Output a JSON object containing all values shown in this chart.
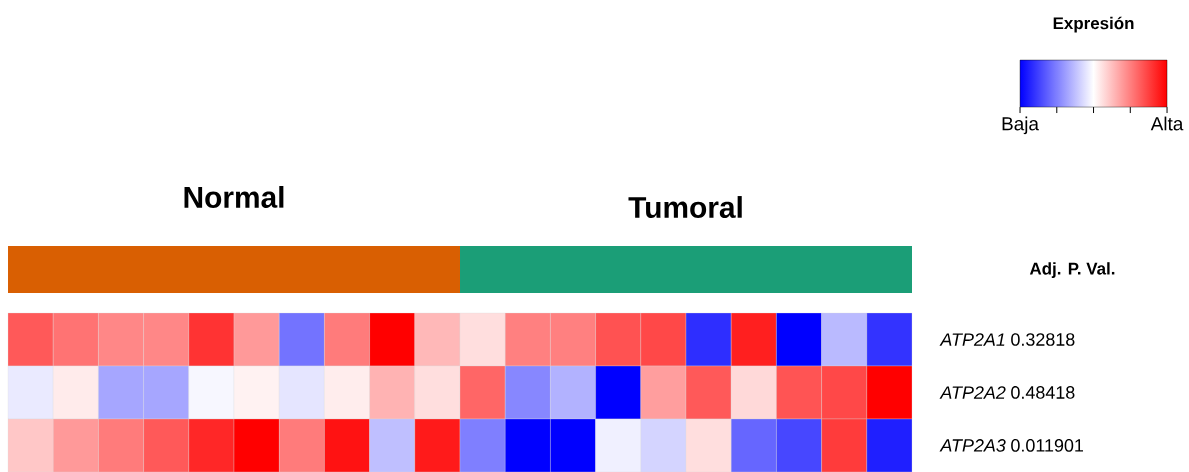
{
  "chart_data": {
    "type": "heatmap",
    "categories": [
      null,
      null,
      null,
      null,
      null,
      null,
      null,
      null,
      null,
      null,
      null,
      null,
      null,
      null,
      null,
      null,
      null,
      null,
      null,
      null
    ],
    "y_categories": [
      "ATP2A1",
      "ATP2A2",
      "ATP2A3"
    ],
    "y2_categories": [
      "0.32818",
      "0.48418",
      "0.011901"
    ],
    "cells": [
      [
        0.65,
        0.55,
        0.47,
        0.47,
        0.8,
        0.4,
        -0.55,
        0.52,
        1.0,
        0.28,
        0.13,
        0.5,
        0.5,
        0.68,
        0.72,
        -0.82,
        0.88,
        -1.0,
        -0.27,
        -0.8
      ],
      [
        -0.08,
        0.08,
        -0.35,
        -0.35,
        -0.03,
        0.05,
        -0.1,
        0.07,
        0.3,
        0.13,
        0.6,
        -0.47,
        -0.3,
        -1.0,
        0.38,
        0.65,
        0.15,
        0.67,
        0.72,
        1.0
      ],
      [
        0.22,
        0.4,
        0.52,
        0.65,
        0.85,
        1.0,
        0.52,
        0.93,
        -0.25,
        0.9,
        -0.5,
        -1.0,
        -1.0,
        -0.06,
        -0.17,
        0.13,
        -0.6,
        -0.72,
        0.77,
        -0.88
      ]
    ],
    "clim": [
      -1,
      1
    ],
    "cticks": [
      {
        "value": -1,
        "label": "Baja"
      },
      {
        "value": -0.5,
        "label": null
      },
      {
        "value": 0,
        "label": null
      },
      {
        "value": 0.5,
        "label": null
      },
      {
        "value": 1,
        "label": "Alta"
      }
    ],
    "clabel": "Expresión",
    "annotations": [
      "Normal",
      "Tumoral",
      "Adj. P. Val."
    ]
  }
}
